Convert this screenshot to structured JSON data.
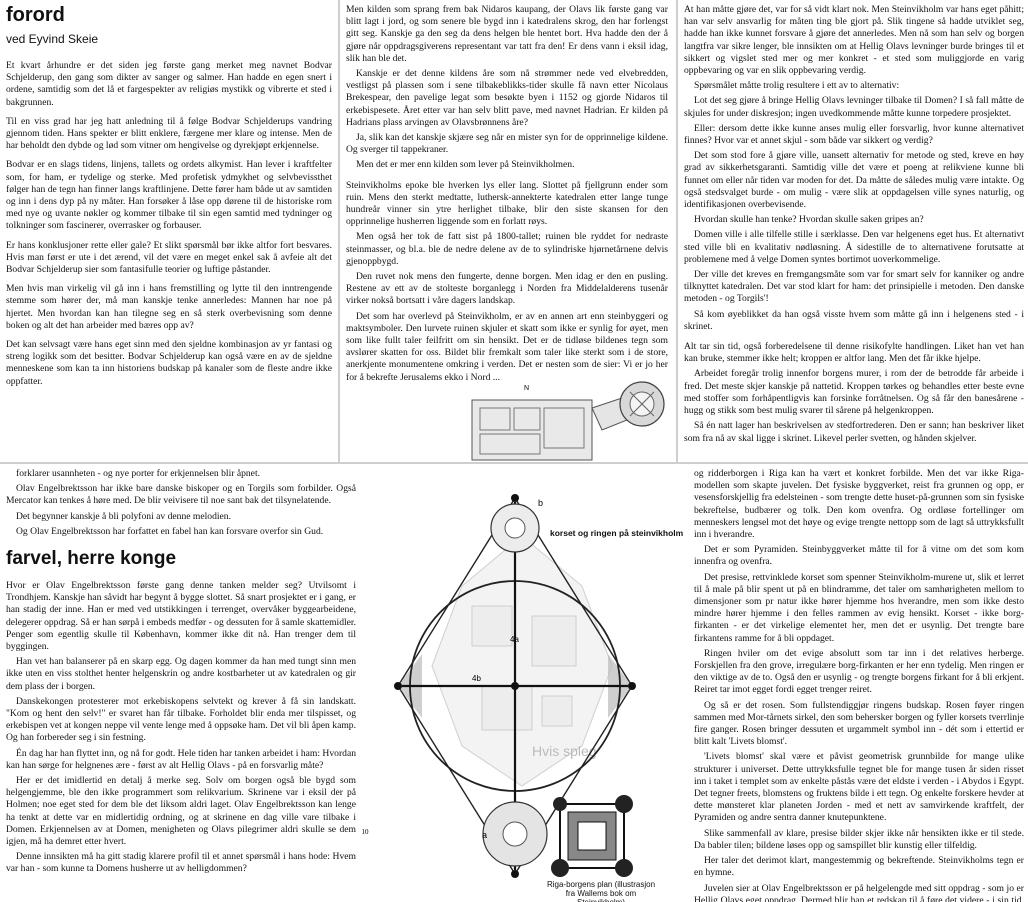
{
  "top_left": {
    "title": "forord",
    "author": "ved Eyvind Skeie",
    "paragraphs": [
      "Et kvart århundre er det siden jeg første gang merket meg navnet Bodvar Schjelderup, den gang som dikter av sanger og salmer. Han hadde en egen snert i ordene, samtidig som det lå et fargespekter av religiøs mystikk og vibrerte et sted i bakgrunnen.",
      "Til en viss grad har jeg hatt anledning til å følge Bodvar Schjelderups vandring gjennom tiden. Hans spekter er blitt enklere, færgene mer klare og intense. Men de har beholdt den dybde og lød som vitner om hengivelse og dyrekjøpt erkjennelse.",
      "Bodvar er en slags tidens, linjens, tallets og ordets alkymist. Han lever i kraftfelter som, for ham, er tydelige og sterke. Med profetisk ydmykhet og selvbevissthet følger han de tegn han finner langs kraftlinjene. Dette fører ham både ut av samtiden og inn i dens dyp på ny måter. Han forsøker å låse opp dørene til de historiske rom med nye og uvante nøkler og kommer tilbake til sin egen samtid med tydninger og tolkninger som fascinerer, overrasker og forbauser.",
      "Er hans konklusjoner rette eller gale? Et slikt spørsmål bør ikke altfor fort besvares. Hvis man først er ute i det ærend, vil det være en meget enkel sak å avfeie alt det Bodvar Schjelderup sier som fantasifulle teorier og luftige påstander.",
      "Men hvis man virkelig vil gå inn i hans fremstilling og lytte til den inntrengende stemme som hører der, må man kanskje tenke annerledes: Mannen har noe på hjertet. Men hvordan kan han tilegne seg en så sterk overbevisning som denne boken og alt det han arbeider med bæres opp av?",
      "Det kan selvsagt være hans eget sinn med den sjeldne kombinasjon av yr fantasi og streng logikk som det besitter. Bodvar Schjelderup kan også være en av de sjeldne menneskene som kan ta inn historiens budskap på kanaler som de fleste andre ikke oppfatter."
    ]
  },
  "top_middle": {
    "paragraphs": [
      "Men kilden som sprang frem bak Nidaros kaupang, der Olavs lik første gang var blitt lagt i jord, og som senere ble bygd inn i katedralens skrog, den har forlengst gitt seg. Kanskje ga den seg da dens helgen ble hentet bort. Hva hadde den der å gjøre når oppdragsgiverens representant var tatt fra den! Er dens vann i eksil idag, slik han ble det.",
      "Kanskje er det denne kildens åre som nå strømmer nede ved elvebredden, vestligst på plassen som i sene tilbakeblikks-tider skulle få navn etter Nicolaus Brekespear, den pavelige legat som besøkte byen i 1152 og gjorde Nidaros til erkebispesete. Året etter var han selv blitt pave, med navnet Hadrian. Er kilden på Hadrians plass arvingen av Olavsbrønnens åre?",
      "Ja, slik kan det kanskje skjære seg når en mister syn for de opprinnelige kildene. Og sverger til tappekraner.",
      "Men det er mer enn kilden som lever på Steinvikholmen.",
      "Steinvikholms epoke ble hverken lys eller lang. Slottet på fjellgrunn ender som ruin. Mens den sterkt medtatte, luthersk-annekterte katedralen etter lange tunge hundreår vinner sin ytre herlighet tilbake, blir den siste skansen for den opprinnelige husherren liggende som en forlatt røys.",
      "Men også her tok de fatt sist på 1800-tallet; ruinen ble ryddet for nedraste steinmasser, og bl.a. ble de nedre delene av de to sylindriske hjørnetårnene delvis gjenoppbygd.",
      "Den ruvet nok mens den fungerte, denne borgen. Men idag er den en pusling. Restene av ett av de stolteste borganlegg i Norden fra Middelalderens tusenår virker nokså bortsatt i våre dagers landskap.",
      "Det som har overlevd på Steinvikholm, er av en annen art enn steinbyggeri og maktsymboler. Den lurvete ruinen skjuler et skatt som ikke er synlig for øyet, men som like fullt taler feilfritt om sin hensikt. Det er de tidløse bildenes tegn som avslører skatten for oss. Bildet blir fremkalt som taler like sterkt som i de store, anerkjente monumentene omkring i verden. Det er nesten som de sier: Vi er jo her for å bekrefte Jerusalems ekko i Nord ..."
    ],
    "north": "N"
  },
  "top_right": {
    "paragraphs": [
      "At han måtte gjøre det, var for så vidt klart nok. Men Steinvikholm var hans eget påhitt; han var selv ansvarlig for måten ting ble gjort på. Slik tingene så hadde utviklet seg, hadde han ikke kunnet forsvare å gjøre det annerledes. Men nå som han selv og borgen langtfra var sikre lenger, ble innsikten om at Hellig Olavs levninger burde bringes til et sikkert og vigslet sted mer og mer konkret - et sted som muliggjorde en varig oppbevaring og var en slik oppbevaring verdig.",
      "Spørsmålet måtte trolig resultere i ett av to alternativ:",
      "Lot det seg gjøre å bringe Hellig Olavs levninger tilbake til Domen? I så fall måtte de skjules for under diskresjon; ingen uvedkommende måtte kunne torpedere prosjektet.",
      "Eller: dersom dette ikke kunne anses mulig eller forsvarlig, hvor kunne alternativet finnes? Hvor var et annet skjul - som både var sikkert og verdig?",
      "Det som stod fore å gjøre ville, uansett alternativ for metode og sted, kreve en høy grad av sikkerhetsgaranti. Samtidig ville det være et poeng at relikviene kunne bli funnet om eller når tiden var moden for det. Da måtte de således mulig være intakte. Og også stedsvalget burde - om mulig - være slik at oppdagelsen ville synes naturlig, og identifikasjonen overbevisende.",
      "Hvordan skulle han tenke? Hvordan skulle saken gripes an?",
      "Domen ville i alle tilfelle stille i særklasse. Den var helgenens eget hus. Et alternativt sted ville bli en kvalitativ nødløsning. Å sidestille de to alternativene forutsatte at problemene med å velge Domen syntes bortimot uoverkommelige.",
      "Der ville det kreves en fremgangsmåte som var for smart selv for kanniker og andre tilknyttet katedralen. Det var stod klart for ham: det prinsipielle i metoden. Den danske metoden - og Torgils'!",
      "Så kom øyeblikket da han også visste hvem som måtte gå inn i helgenens sted - i skrinet.",
      "Alt tar sin tid, også forberedelsene til denne risikofylte handlingen. Liket han vet han kan bruke, stemmer ikke helt; kroppen er altfor lang. Men det får ikke hjelpe.",
      "Arbeidet foregår trolig innenfor borgens murer, i rom der de betrodde får arbeide i fred. Det meste skjer kanskje på nattetid. Kroppen tørkes og behandles etter beste evne med stoffer som forhåpentligvis kan forsinke forråtnelsen. Og så får den banesårene - hugg og stikk som best mulig svarer til sårene på helgenkroppen.",
      "Så én natt lager han beskrivelsen av stedfortrederen. Den er sann; han beskriver liket som fra nå av skal ligge i skrinet. Likevel perler svetten, og hånden skjelver."
    ]
  },
  "bottom_left": {
    "intro": [
      "forklarer usannheten - og nye porter for erkjennelsen blir åpnet.",
      "Olav Engelbrektsson har ikke bare danske biskoper og en Torgils som forbilder. Også Mercator kan tenkes å høre med. De blir veivisere til noe sant bak det tilsynelatende.",
      "Det begynner kanskje å bli polyfoni av denne melodien.",
      "Og Olav Engelbrektsson har forfattet en fabel han kan forsvare overfor sin Gud."
    ],
    "title": "farvel, herre konge",
    "paragraphs": [
      "Hvor er Olav Engelbrektsson første gang denne tanken melder seg? Utvilsomt i Trondhjem. Kanskje han såvidt har begynt å bygge slottet. Så snart prosjektet er i gang, er han stadig der inne. Han er med ved utstikkingen i terrenget, overvåker byggearbeidene, delegerer oppdrag. Så er han sørpå i embeds medfør - og dessuten for å samle skattemidler. Penger som egentlig skulle til København, kommer ikke dit nå. Han trenger dem til byggingen.",
      "Han vet han balanserer på en skarp egg. Og dagen kommer da han med tungt sinn men ikke uten en viss stolthet henter helgenskrin og andre kostbarheter ut av katedralen og gir dem plass der i borgen.",
      "Danskekongen protesterer mot erkebiskopens selvtekt og krever å få sin landskatt. \"Kom og hent den selv!\" er svaret han får tilbake. Forholdet blir enda mer tilspisset, og erkebispen vet at kongen neppe vil vente lenge med å oppsøke ham. Det vil bli åpen kamp. Og han forbereder seg i sin festning.",
      "Én dag har han flyttet inn, og nå for godt. Hele tiden har tanken arbeidet i ham: Hvordan kan han sørge for helgnenes ære - først av alt Hellig Olavs - på en forsvarlig måte?",
      "Her er det imidlertid en detalj å merke seg. Solv om borgen også ble bygd som helgengjemme, ble den ikke programmert som relikvarium. Skrinene var i eksil der på Holmen; noe eget sted for dem ble det liksom aldri laget. Olav Engelbrektsson kan lenge ha tenkt at dette var en midlertidig ordning, og at skrinene en dag ville vare tilbake i Domen. Erkjennelsen av at Domen, menigheten og Olavs pilegrimer aldri skulle se dem igjen, må ha demret etter hvert.",
      "Denne innsikten må ha gitt stadig klarere profil til et annet spørsmål i hans hode: Hvem var han - som kunne ta Domens husherre ut av helligdommen?"
    ]
  },
  "bottom_middle": {
    "diagram_title": "korset og ringen på steinvikholm",
    "labels": {
      "b": "b",
      "a": "a",
      "4a": "4a",
      "4b": "4b"
    },
    "page_number": "210",
    "plan_caption": "Riga-borgens plan (illustrasjon fra Wallems bok om Steinvikholm)",
    "faint_text": "Hvis spleg"
  },
  "bottom_right": {
    "paragraphs": [
      "og ridderborgen i Riga kan ha vært et konkret forbilde. Men det var ikke Riga-modellen som skapte juvelen. Det fysiske byggverket, reist fra grunnen og opp, er vesensforskjellig fra edelsteinen - som trengte dette huset-på-grunnen som sin fysiske bekreftelse, budbærer og tolk. Den kom ovenfra. Og ordløse fortellinger om menneskers lengsel mot det høye og evige trengte nettopp som de lagt så uttrykksfullt inn i hverandre.",
      "Det er som Pyramiden. Steinbyggverket måtte til for å vitne om det som kom innenfra og ovenfra.",
      "Det presise, rettvinklede korset som spenner Steinvikholm-murene ut, slik et lerret til å male på blir spent ut på en blindramme, det taler om samhørigheten mellom to dimensjoner som pr natur ikke hører hjemme hos hverandre, men som ikke desto mindre hører hjemme i den felles rammen av evig hensikt. Korset - ikke borg-firkanten - er det virkelige elementet her, men det er usynlig. Det trengte bare firkantens ramme for å bli oppdaget.",
      "Ringen hviler om det evige absolutt som tar inn i det relatives herberge. Forskjellen fra den grove, irregulære borg-firkanten er her enn tydelig. Men ringen er den viktige av de to. Også den er usynlig - og trengte borgens firkant for å bli erkjent. Reiret tar imot egget fordi egget trenger reiret.",
      "Og så er det rosen. Som fullstendiggjør ringens budskap. Rosen føyer ringen sammen med Mor-tårnets sirkel, den som behersker borgen og fyller korsets tverrlinje fire ganger. Rosen bringer dessuten et urgammelt symbol inn - dét som i ettertid er blitt kalt 'Livets blomst'.",
      "'Livets blomst' skal være et påvist geometrisk grunnbilde for mange ulike strukturer i universet. Dette uttrykksfulle tegnet ble for mange tusen år siden risset inn i taket i templet som av enkelte påstås være det eldste i verden - i Abydos i Egypt. Det tegner freets, blomstens og fruktens bilde i ett tegn. Og enkelte forskere hevder at dette mønsteret klar planeten Jorden - med et nett av samvirkende kraftfelt, der Pyramiden og andre sentra danner knutepunktene.",
      "Slike sammenfall av klare, presise bilder skjer ikke når hensikten ikke er til stede. Da babler tilen; bildene løses opp og samspillet blir kunstig eller tilfeldig.",
      "Her taler det derimot klart, mangestemmig og bekreftende. Steinvikholms tegn er en hymne.",
      "Juvelen sier at Olav Engelbrektsson er på helgelengde med sitt oppdrag - som jo er Hellig Olavs eget oppdrag. Dermed blir han et redskap til å føre det videre - i sin tid, denne neste tiden som trenger det, og som det var ment for. Tiden som mottok byggverket, raserte det så vår tid skulle få dets hemmelige tegn som et rent kyss fra usminket munn. Bølgelengden lar oss motta og lytte. Vi trenger"
    ]
  }
}
